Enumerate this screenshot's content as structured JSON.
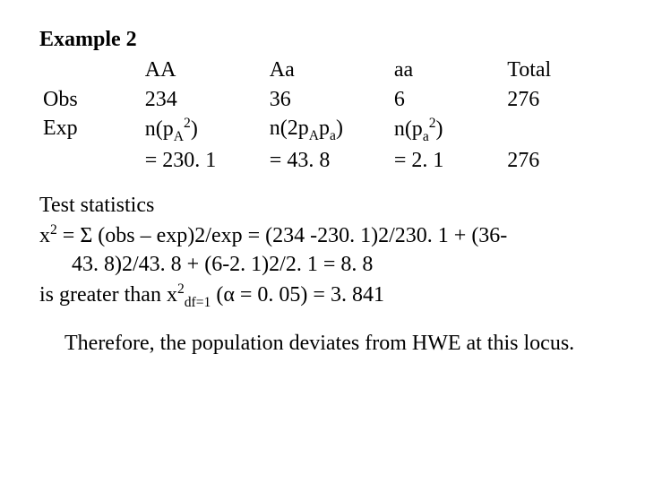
{
  "title": "Example 2",
  "table": {
    "header": {
      "label": "",
      "AA": "AA",
      "Aa": "Aa",
      "aa": "aa",
      "Total": "Total"
    },
    "obs": {
      "label": "Obs",
      "AA": "234",
      "Aa": "36",
      "aa": "6",
      "Total": "276"
    },
    "exp_label": "Exp",
    "exp_formulas": {
      "AA_pre": "n(p",
      "AA_sub": "A",
      "AA_sup": "2",
      "AA_post": ")",
      "Aa_pre": "n(2p",
      "Aa_sub1": "A",
      "Aa_mid": "p",
      "Aa_sub2": "a",
      "Aa_post": ")",
      "aa_pre": "n(p",
      "aa_sub": "a",
      "aa_sup": "2",
      "aa_post": ")"
    },
    "exp_values": {
      "AA": "= 230. 1",
      "Aa": "= 43. 8",
      "aa": "= 2. 1",
      "Total": "276"
    }
  },
  "stats": {
    "heading": "Test statistics",
    "chi_pre": "x",
    "chi_sup": "2",
    "chi_line1": " = Σ (obs – exp)2/exp = (234 -230. 1)2/230. 1 + (36-",
    "chi_line2": "43. 8)2/43. 8 + (6-2. 1)2/2. 1 = 8. 8",
    "gt_pre": "is greater than x",
    "gt_sup": "2",
    "gt_sub": "df=1",
    "gt_post": " (α = 0. 05) = 3. 841"
  },
  "conclusion": "Therefore, the population deviates from HWE at this locus.",
  "style": {
    "font_family": "Times New Roman",
    "font_size_pt": 24,
    "text_color": "#000000",
    "background_color": "#ffffff",
    "title_weight": "bold"
  }
}
